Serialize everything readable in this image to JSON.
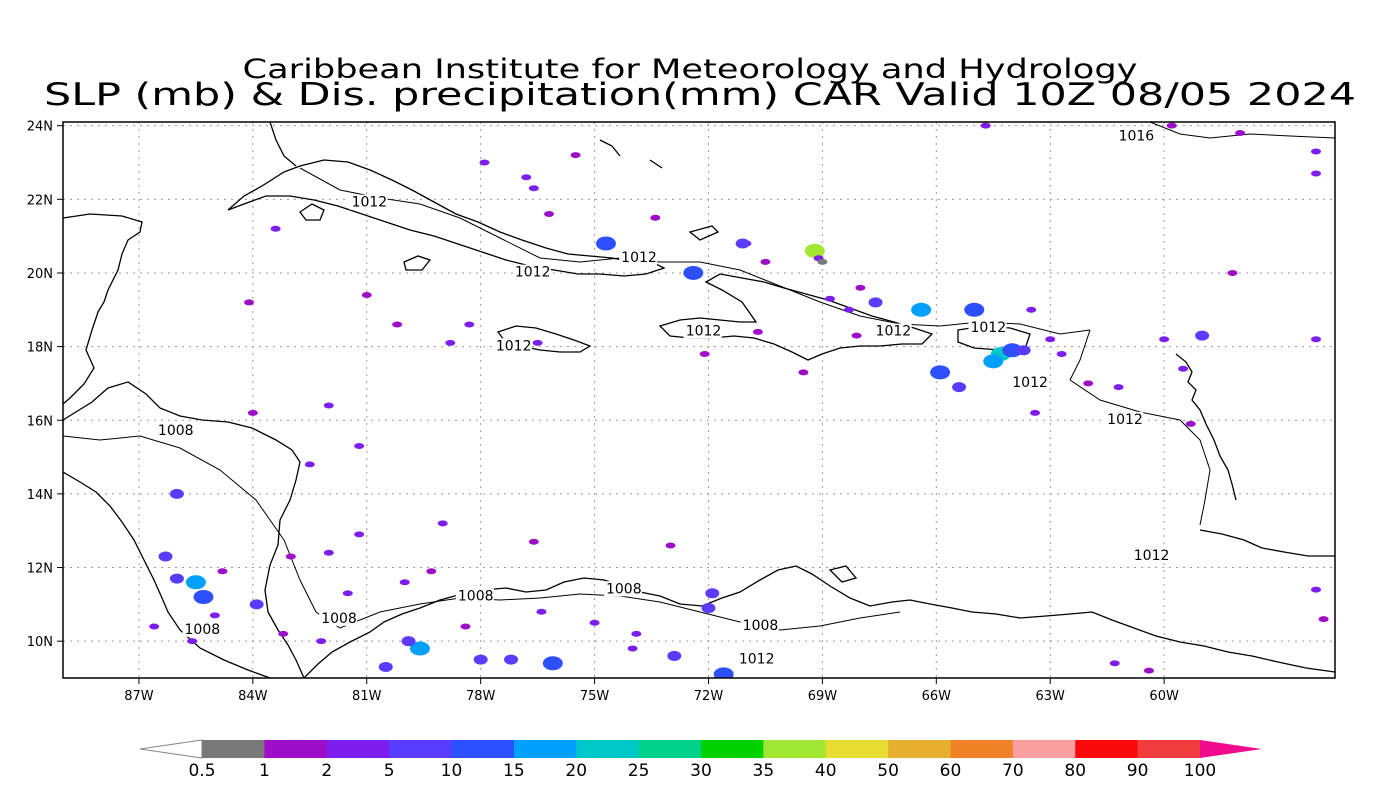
{
  "title": {
    "line1": "Caribbean Institute for Meteorology and Hydrology",
    "line2": "SLP (mb) & Dis. precipitation(mm) CAR Valid 10Z 08/05 2024"
  },
  "map": {
    "lon_range": [
      -89,
      -55.5
    ],
    "lat_range": [
      9,
      24.1
    ],
    "lat_ticks": [
      {
        "value": 10,
        "label": "10N"
      },
      {
        "value": 12,
        "label": "12N"
      },
      {
        "value": 14,
        "label": "14N"
      },
      {
        "value": 16,
        "label": "16N"
      },
      {
        "value": 18,
        "label": "18N"
      },
      {
        "value": 20,
        "label": "20N"
      },
      {
        "value": 22,
        "label": "22N"
      },
      {
        "value": 24,
        "label": "24N"
      }
    ],
    "lon_ticks": [
      {
        "value": -87,
        "label": "87W"
      },
      {
        "value": -84,
        "label": "84W"
      },
      {
        "value": -81,
        "label": "81W"
      },
      {
        "value": -78,
        "label": "78W"
      },
      {
        "value": -75,
        "label": "75W"
      },
      {
        "value": -72,
        "label": "72W"
      },
      {
        "value": -69,
        "label": "69W"
      },
      {
        "value": -66,
        "label": "66W"
      },
      {
        "value": -63,
        "label": "63W"
      },
      {
        "value": -60,
        "label": "60W"
      }
    ],
    "grid": true
  },
  "contour_labels": [
    {
      "text": "1016",
      "lon": -61.2,
      "lat": 23.6
    },
    {
      "text": "1012",
      "lon": -81.4,
      "lat": 21.8
    },
    {
      "text": "1012",
      "lon": -74.3,
      "lat": 20.3
    },
    {
      "text": "1012",
      "lon": -77.1,
      "lat": 19.9
    },
    {
      "text": "1012",
      "lon": -72.6,
      "lat": 18.3
    },
    {
      "text": "1012",
      "lon": -77.6,
      "lat": 17.9
    },
    {
      "text": "1012",
      "lon": -67.6,
      "lat": 18.3
    },
    {
      "text": "1012",
      "lon": -65.1,
      "lat": 18.4
    },
    {
      "text": "1012",
      "lon": -64.0,
      "lat": 16.9
    },
    {
      "text": "1012",
      "lon": -61.5,
      "lat": 15.9
    },
    {
      "text": "1012",
      "lon": -60.8,
      "lat": 12.2
    },
    {
      "text": "1008",
      "lon": -86.5,
      "lat": 15.6
    },
    {
      "text": "1008",
      "lon": -85.8,
      "lat": 10.2
    },
    {
      "text": "1008",
      "lon": -82.2,
      "lat": 10.5
    },
    {
      "text": "1008",
      "lon": -78.6,
      "lat": 11.1
    },
    {
      "text": "1008",
      "lon": -74.7,
      "lat": 11.3
    },
    {
      "text": "1008",
      "lon": -71.1,
      "lat": 10.3
    },
    {
      "text": "1012",
      "lon": -71.2,
      "lat": 9.4
    }
  ],
  "precip_cells": [
    {
      "lon": -69.2,
      "lat": 20.6,
      "mm": 35
    },
    {
      "lon": -69.1,
      "lat": 20.4,
      "mm": 2
    },
    {
      "lon": -69.0,
      "lat": 20.3,
      "mm": 0.5
    },
    {
      "lon": -64.3,
      "lat": 17.8,
      "mm": 20
    },
    {
      "lon": -64.0,
      "lat": 17.9,
      "mm": 10
    },
    {
      "lon": -63.7,
      "lat": 17.9,
      "mm": 5
    },
    {
      "lon": -64.5,
      "lat": 17.6,
      "mm": 15
    },
    {
      "lon": -65.9,
      "lat": 17.3,
      "mm": 10
    },
    {
      "lon": -65.4,
      "lat": 16.9,
      "mm": 5
    },
    {
      "lon": -66.4,
      "lat": 19.0,
      "mm": 15
    },
    {
      "lon": -65.0,
      "lat": 19.0,
      "mm": 10
    },
    {
      "lon": -67.6,
      "lat": 19.2,
      "mm": 5
    },
    {
      "lon": -74.7,
      "lat": 20.8,
      "mm": 10
    },
    {
      "lon": -72.4,
      "lat": 20.0,
      "mm": 10
    },
    {
      "lon": -59.0,
      "lat": 18.3,
      "mm": 5
    },
    {
      "lon": -60.0,
      "lat": 18.2,
      "mm": 2
    },
    {
      "lon": -59.5,
      "lat": 17.4,
      "mm": 2
    },
    {
      "lon": -56.0,
      "lat": 18.2,
      "mm": 2
    },
    {
      "lon": -85.5,
      "lat": 11.6,
      "mm": 15
    },
    {
      "lon": -86.0,
      "lat": 11.7,
      "mm": 5
    },
    {
      "lon": -86.3,
      "lat": 12.3,
      "mm": 5
    },
    {
      "lon": -85.3,
      "lat": 11.2,
      "mm": 10
    },
    {
      "lon": -79.6,
      "lat": 9.8,
      "mm": 15
    },
    {
      "lon": -79.9,
      "lat": 10.0,
      "mm": 5
    },
    {
      "lon": -78.0,
      "lat": 9.5,
      "mm": 5
    },
    {
      "lon": -76.1,
      "lat": 9.4,
      "mm": 10
    },
    {
      "lon": -80.5,
      "lat": 9.3,
      "mm": 5
    },
    {
      "lon": -77.2,
      "lat": 9.5,
      "mm": 5
    },
    {
      "lon": -72.0,
      "lat": 10.9,
      "mm": 5
    },
    {
      "lon": -71.9,
      "lat": 11.3,
      "mm": 5
    },
    {
      "lon": -72.9,
      "lat": 9.6,
      "mm": 5
    },
    {
      "lon": -71.6,
      "lat": 9.1,
      "mm": 10
    },
    {
      "lon": -83.9,
      "lat": 11.0,
      "mm": 5
    },
    {
      "lon": -86.0,
      "lat": 14.0,
      "mm": 5
    },
    {
      "lon": -85.6,
      "lat": 10.0,
      "mm": 2
    },
    {
      "lon": -73.9,
      "lat": 10.2,
      "mm": 2
    },
    {
      "lon": -78.8,
      "lat": 18.1,
      "mm": 2
    },
    {
      "lon": -76.5,
      "lat": 18.1,
      "mm": 2
    },
    {
      "lon": -78.3,
      "lat": 18.6,
      "mm": 2
    },
    {
      "lon": -80.2,
      "lat": 18.6,
      "mm": 1
    },
    {
      "lon": -82.0,
      "lat": 16.4,
      "mm": 2
    },
    {
      "lon": -84.0,
      "lat": 16.2,
      "mm": 1
    },
    {
      "lon": -81.2,
      "lat": 15.3,
      "mm": 2
    },
    {
      "lon": -82.5,
      "lat": 14.8,
      "mm": 2
    },
    {
      "lon": -81.2,
      "lat": 12.9,
      "mm": 2
    },
    {
      "lon": -82.0,
      "lat": 12.4,
      "mm": 2
    },
    {
      "lon": -83.0,
      "lat": 12.3,
      "mm": 1
    },
    {
      "lon": -84.8,
      "lat": 11.9,
      "mm": 1
    },
    {
      "lon": -79.0,
      "lat": 13.2,
      "mm": 2
    },
    {
      "lon": -76.6,
      "lat": 12.7,
      "mm": 1
    },
    {
      "lon": -73.0,
      "lat": 12.6,
      "mm": 1
    },
    {
      "lon": -80.0,
      "lat": 11.6,
      "mm": 2
    },
    {
      "lon": -81.5,
      "lat": 11.3,
      "mm": 2
    },
    {
      "lon": -79.3,
      "lat": 11.9,
      "mm": 1
    },
    {
      "lon": -76.4,
      "lat": 10.8,
      "mm": 2
    },
    {
      "lon": -74.0,
      "lat": 9.8,
      "mm": 2
    },
    {
      "lon": -75.0,
      "lat": 10.5,
      "mm": 2
    },
    {
      "lon": -78.4,
      "lat": 10.4,
      "mm": 1
    },
    {
      "lon": -82.2,
      "lat": 10.0,
      "mm": 2
    },
    {
      "lon": -83.2,
      "lat": 10.2,
      "mm": 1
    },
    {
      "lon": -77.9,
      "lat": 23.0,
      "mm": 2
    },
    {
      "lon": -76.8,
      "lat": 22.6,
      "mm": 2
    },
    {
      "lon": -76.6,
      "lat": 22.3,
      "mm": 2
    },
    {
      "lon": -75.5,
      "lat": 23.2,
      "mm": 1
    },
    {
      "lon": -76.2,
      "lat": 21.6,
      "mm": 1
    },
    {
      "lon": -73.4,
      "lat": 21.5,
      "mm": 1
    },
    {
      "lon": -71.0,
      "lat": 20.8,
      "mm": 2
    },
    {
      "lon": -70.5,
      "lat": 20.3,
      "mm": 1
    },
    {
      "lon": -72.1,
      "lat": 17.8,
      "mm": 1
    },
    {
      "lon": -70.7,
      "lat": 18.4,
      "mm": 1
    },
    {
      "lon": -69.5,
      "lat": 17.3,
      "mm": 1
    },
    {
      "lon": -68.3,
      "lat": 19.0,
      "mm": 2
    },
    {
      "lon": -68.8,
      "lat": 19.3,
      "mm": 2
    },
    {
      "lon": -68.0,
      "lat": 19.6,
      "mm": 1
    },
    {
      "lon": -63.5,
      "lat": 19.0,
      "mm": 2
    },
    {
      "lon": -63.0,
      "lat": 18.2,
      "mm": 2
    },
    {
      "lon": -62.7,
      "lat": 17.8,
      "mm": 2
    },
    {
      "lon": -63.4,
      "lat": 16.2,
      "mm": 2
    },
    {
      "lon": -62.0,
      "lat": 17.0,
      "mm": 1
    },
    {
      "lon": -61.2,
      "lat": 16.9,
      "mm": 2
    },
    {
      "lon": -59.3,
      "lat": 15.9,
      "mm": 1
    },
    {
      "lon": -58.2,
      "lat": 20.0,
      "mm": 1
    },
    {
      "lon": -56.0,
      "lat": 23.3,
      "mm": 2
    },
    {
      "lon": -56.0,
      "lat": 22.7,
      "mm": 2
    },
    {
      "lon": -58.0,
      "lat": 23.8,
      "mm": 1
    },
    {
      "lon": -56.0,
      "lat": 11.4,
      "mm": 2
    },
    {
      "lon": -55.8,
      "lat": 10.6,
      "mm": 1
    },
    {
      "lon": -61.3,
      "lat": 9.4,
      "mm": 2
    },
    {
      "lon": -60.4,
      "lat": 9.2,
      "mm": 1
    },
    {
      "lon": -83.4,
      "lat": 21.2,
      "mm": 2
    },
    {
      "lon": -81.0,
      "lat": 19.4,
      "mm": 1
    },
    {
      "lon": -64.7,
      "lat": 24.0,
      "mm": 2
    },
    {
      "lon": -59.8,
      "lat": 24.0,
      "mm": 1
    },
    {
      "lon": -71.1,
      "lat": 20.8,
      "mm": 5
    },
    {
      "lon": -68.1,
      "lat": 18.3,
      "mm": 1
    },
    {
      "lon": -84.1,
      "lat": 19.2,
      "mm": 1
    },
    {
      "lon": -85.0,
      "lat": 10.7,
      "mm": 2
    },
    {
      "lon": -86.6,
      "lat": 10.4,
      "mm": 2
    }
  ],
  "colorbar": {
    "labels": [
      "0.5",
      "1",
      "2",
      "5",
      "10",
      "15",
      "20",
      "25",
      "30",
      "35",
      "40",
      "50",
      "60",
      "70",
      "80",
      "90",
      "100"
    ],
    "colors": [
      "#ffffff",
      "#787878",
      "#9e0ec8",
      "#7d1eee",
      "#5a3cff",
      "#2d50ff",
      "#00a0ff",
      "#00c8c8",
      "#00d28c",
      "#00d200",
      "#a0e632",
      "#e6dc32",
      "#e6af2d",
      "#f08228",
      "#faa0a0",
      "#fa0a0a",
      "#f03c3c",
      "#f00a8c"
    ]
  }
}
